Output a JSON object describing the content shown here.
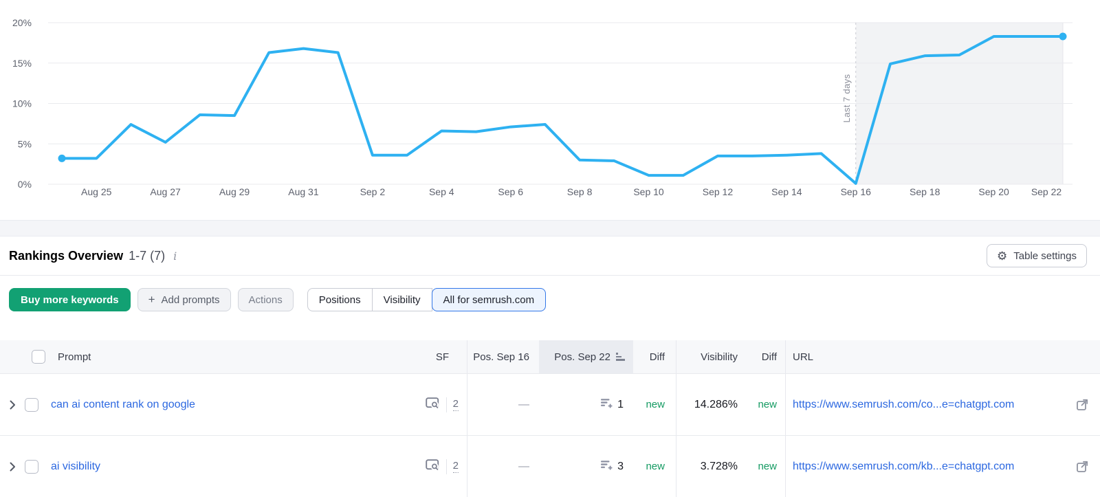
{
  "chart_data": {
    "type": "line",
    "x": [
      "Aug 24",
      "Aug 25",
      "Aug 26",
      "Aug 27",
      "Aug 28",
      "Aug 29",
      "Aug 30",
      "Aug 31",
      "Sep 1",
      "Sep 2",
      "Sep 3",
      "Sep 4",
      "Sep 5",
      "Sep 6",
      "Sep 7",
      "Sep 8",
      "Sep 9",
      "Sep 10",
      "Sep 11",
      "Sep 12",
      "Sep 13",
      "Sep 14",
      "Sep 15",
      "Sep 16",
      "Sep 17",
      "Sep 18",
      "Sep 19",
      "Sep 20",
      "Sep 21",
      "Sep 22"
    ],
    "values": [
      3.2,
      3.2,
      7.4,
      5.2,
      8.6,
      8.5,
      16.3,
      16.8,
      16.3,
      3.6,
      3.6,
      6.6,
      6.5,
      7.1,
      7.4,
      3.0,
      2.9,
      1.1,
      1.1,
      3.5,
      3.5,
      3.6,
      3.8,
      0.1,
      14.9,
      15.9,
      16.0,
      18.3,
      18.3,
      18.3
    ],
    "unit": "%",
    "ylim": [
      0,
      20
    ],
    "y_ticks": [
      "0%",
      "5%",
      "10%",
      "15%",
      "20%"
    ],
    "x_tick_every": 2,
    "annotation": "Last 7 days",
    "highlight_start": "Sep 16",
    "line_color": "#2eb1f1",
    "highlight_bg": "#f2f3f5",
    "grid": true,
    "legend": false
  },
  "section": {
    "title": "Rankings Overview",
    "count": "1-7 (7)",
    "settings_label": "Table settings"
  },
  "icons": {
    "gear": "⚙",
    "info": "i",
    "plus": "+"
  },
  "toolbar": {
    "buy_label": "Buy more keywords",
    "add_prompts_label": "Add prompts",
    "actions_label": "Actions",
    "segments": [
      {
        "label": "Positions",
        "selected": false
      },
      {
        "label": "Visibility",
        "selected": false
      },
      {
        "label": "All for semrush.com",
        "selected": true
      }
    ]
  },
  "table": {
    "headers": {
      "prompt": "Prompt",
      "sf": "SF",
      "pos_prev": "Pos. Sep 16",
      "pos_current": "Pos. Sep 22",
      "diff": "Diff",
      "visibility": "Visibility",
      "diff2": "Diff",
      "url": "URL"
    },
    "rows": [
      {
        "prompt": "can ai content rank on google",
        "sf_count": "2",
        "pos_prev": "—",
        "pos_current": "1",
        "diff": "new",
        "visibility": "14.286%",
        "visibility_diff": "new",
        "url": "https://www.semrush.com/co...e=chatgpt.com"
      },
      {
        "prompt": "ai visibility",
        "sf_count": "2",
        "pos_prev": "—",
        "pos_current": "3",
        "diff": "new",
        "visibility": "3.728%",
        "visibility_diff": "new",
        "url": "https://www.semrush.com/kb...e=chatgpt.com"
      }
    ]
  }
}
